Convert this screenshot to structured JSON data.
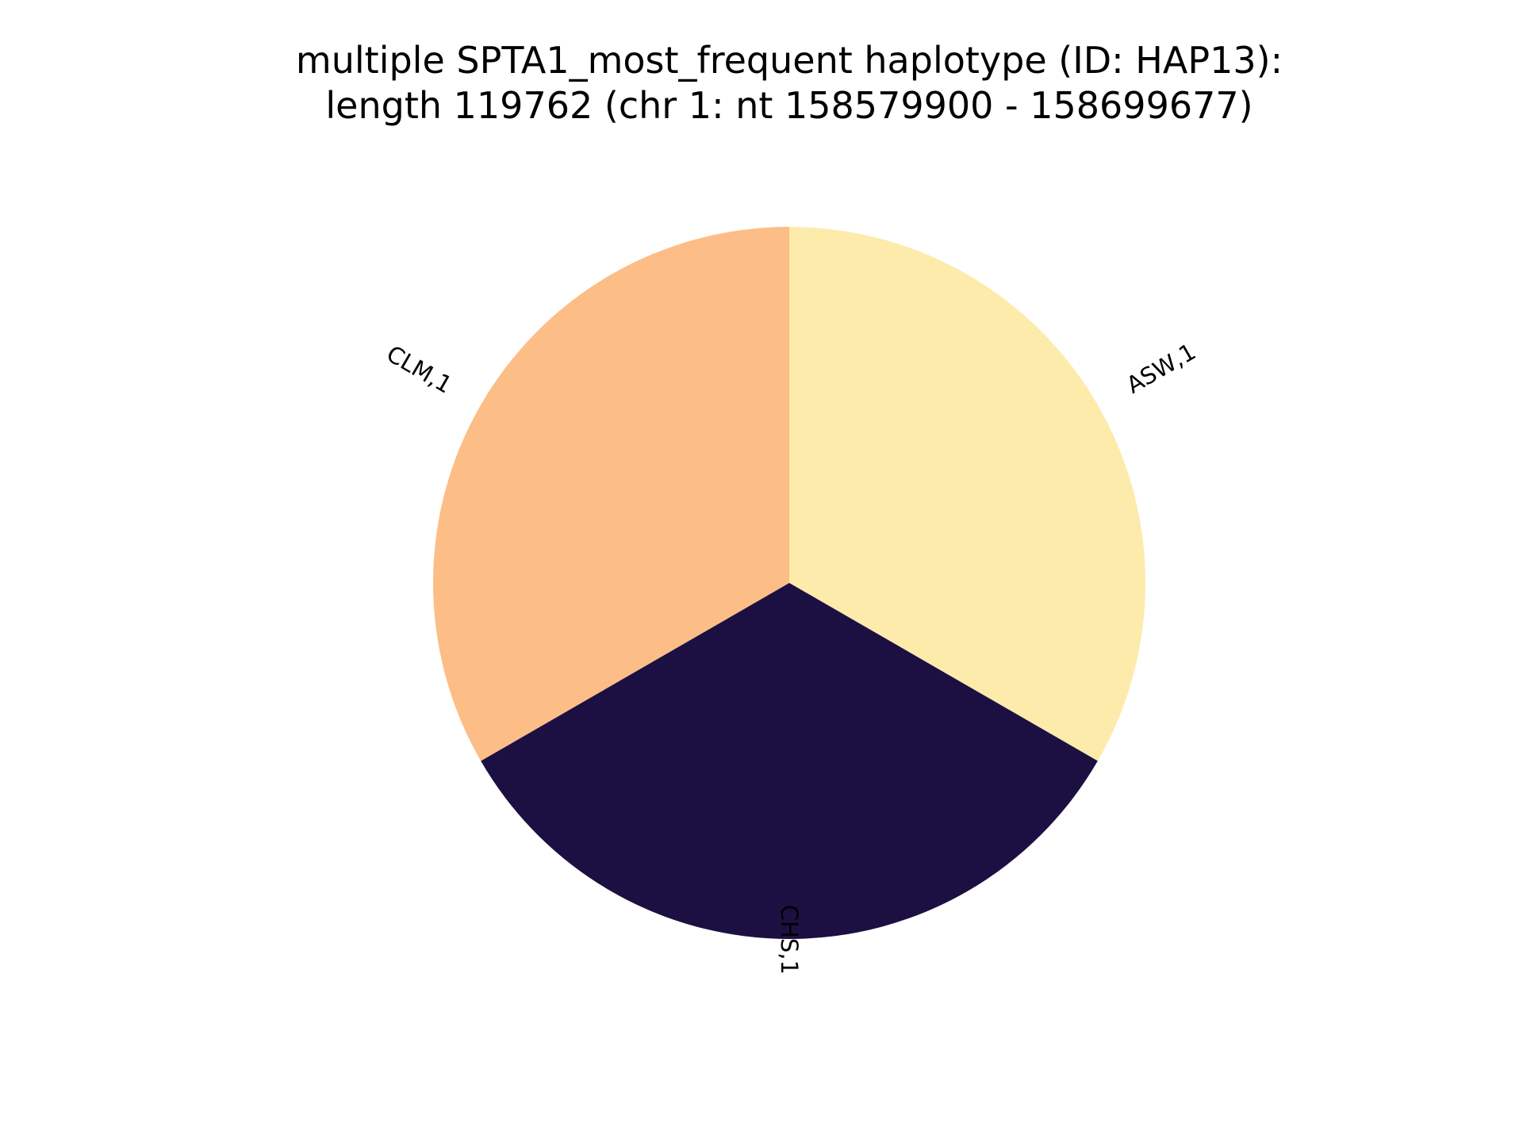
{
  "chart_data": {
    "type": "pie",
    "title_lines": [
      "multiple SPTA1_most_frequent haplotype (ID: HAP13):",
      "length 119762 (chr 1: nt 158579900 - 158699677)"
    ],
    "slices": [
      {
        "label": "ASW,1",
        "value": 1,
        "color": "#fdebac"
      },
      {
        "label": "CHS,1",
        "value": 1,
        "color": "#1c1042"
      },
      {
        "label": "CLM,1",
        "value": 1,
        "color": "#fcbe86"
      }
    ],
    "start_angle_deg": 90,
    "direction": "clockwise"
  }
}
